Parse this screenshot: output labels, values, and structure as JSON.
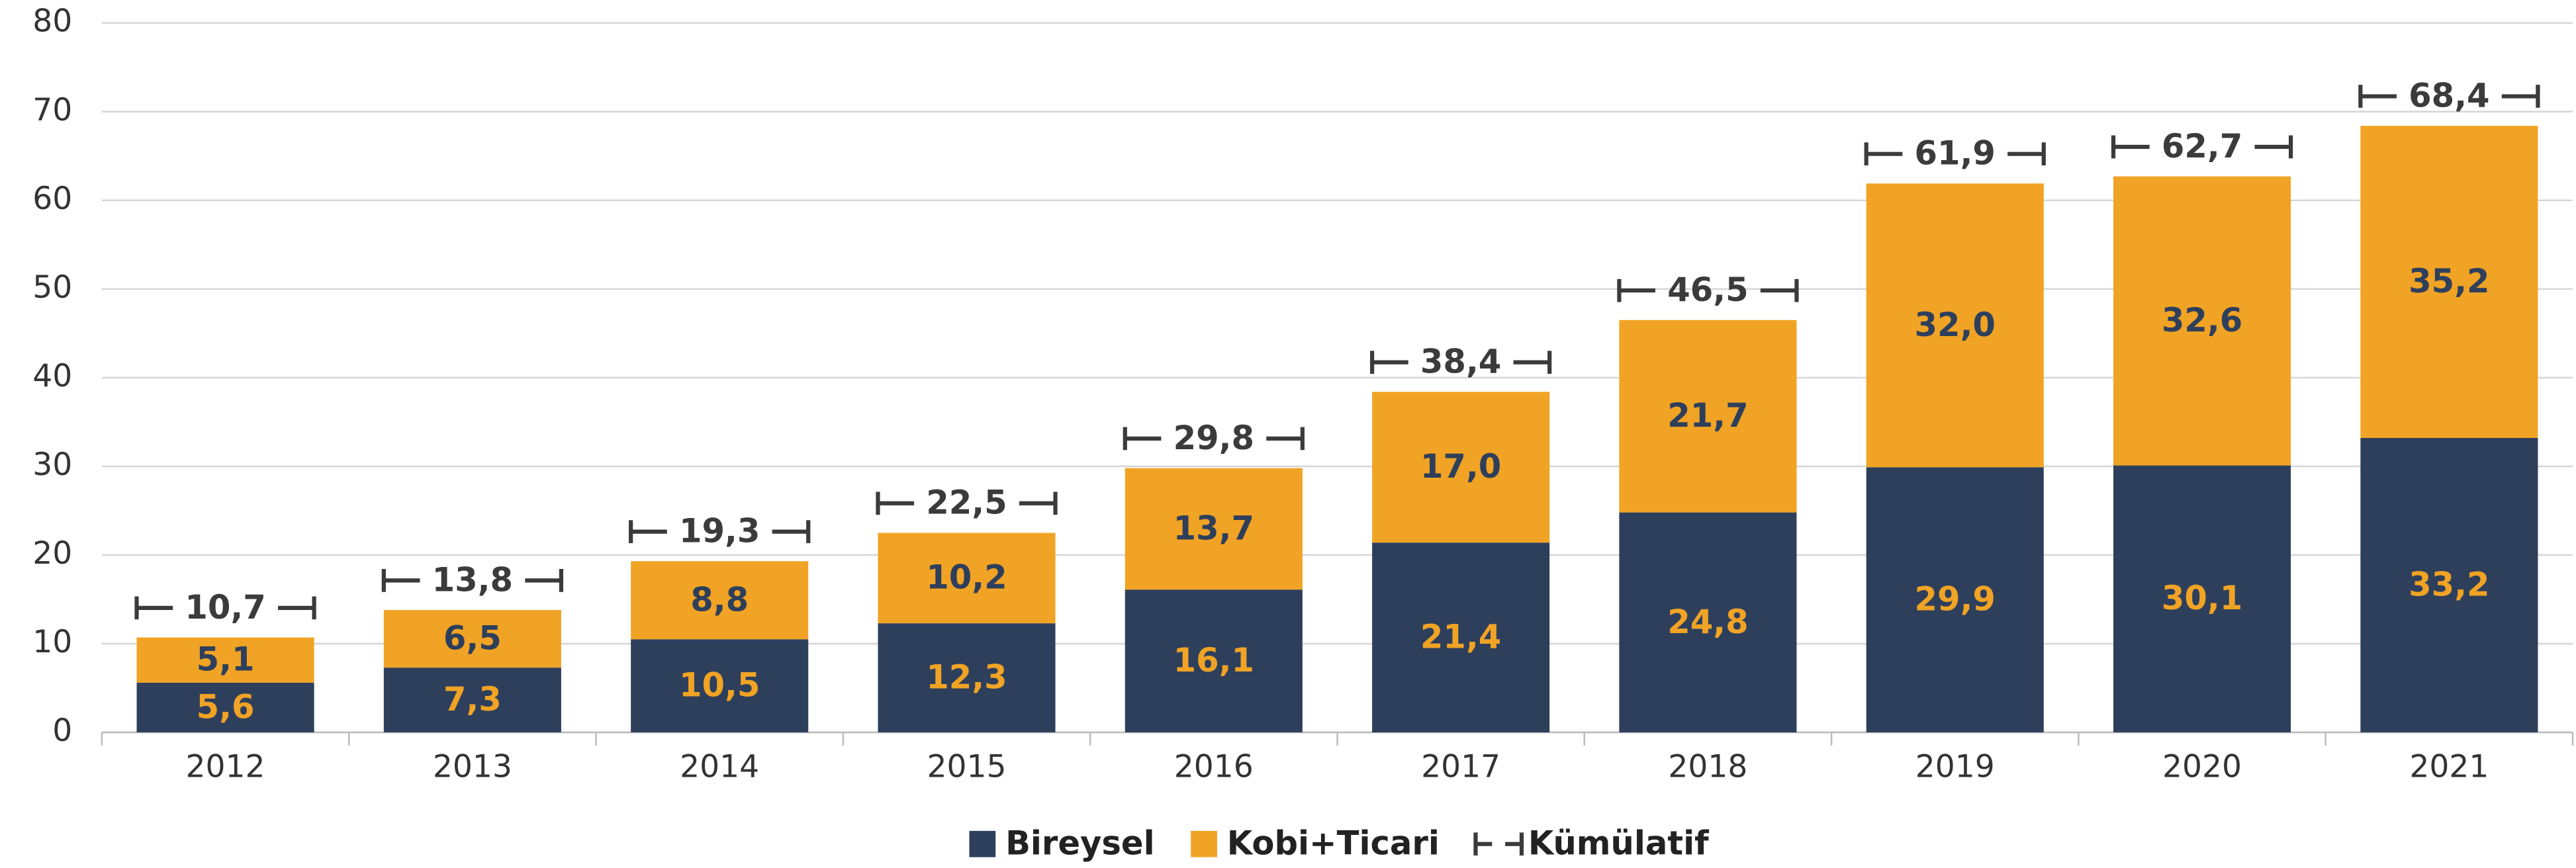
{
  "chart_data": {
    "type": "stacked_bar",
    "categories": [
      "2012",
      "2013",
      "2014",
      "2015",
      "2016",
      "2017",
      "2018",
      "2019",
      "2020",
      "2021"
    ],
    "series": [
      {
        "name": "Bireysel",
        "color": "#2e3f5c",
        "label_color": "#f0a324",
        "values": [
          5.6,
          7.3,
          10.5,
          12.3,
          16.1,
          21.4,
          24.8,
          29.9,
          30.1,
          33.2
        ],
        "value_labels": [
          "5,6",
          "7,3",
          "10,5",
          "12,3",
          "16,1",
          "21,4",
          "24,8",
          "29,9",
          "30,1",
          "33,2"
        ]
      },
      {
        "name": "Kobi+Ticari",
        "color": "#f0a324",
        "label_color": "#2e3f5c",
        "values": [
          5.1,
          6.5,
          8.8,
          10.2,
          13.7,
          17.0,
          21.7,
          32.0,
          32.6,
          35.2
        ],
        "value_labels": [
          "5,1",
          "6,5",
          "8,8",
          "10,2",
          "13,7",
          "17,0",
          "21,7",
          "32,0",
          "32,6",
          "35,2"
        ]
      }
    ],
    "total": {
      "name": "Kümülatif",
      "color": "#3b3b3b",
      "values": [
        10.7,
        13.8,
        19.3,
        22.5,
        29.8,
        38.4,
        46.5,
        61.9,
        62.7,
        68.4
      ],
      "value_labels": [
        "10,7",
        "13,8",
        "19,3",
        "22,5",
        "29,8",
        "38,4",
        "46,5",
        "61,9",
        "62,7",
        "68,4"
      ]
    },
    "ylim": [
      0,
      80
    ],
    "yticks": [
      0,
      10,
      20,
      30,
      40,
      50,
      60,
      70,
      80
    ],
    "grid": true,
    "legend": "bottom"
  }
}
